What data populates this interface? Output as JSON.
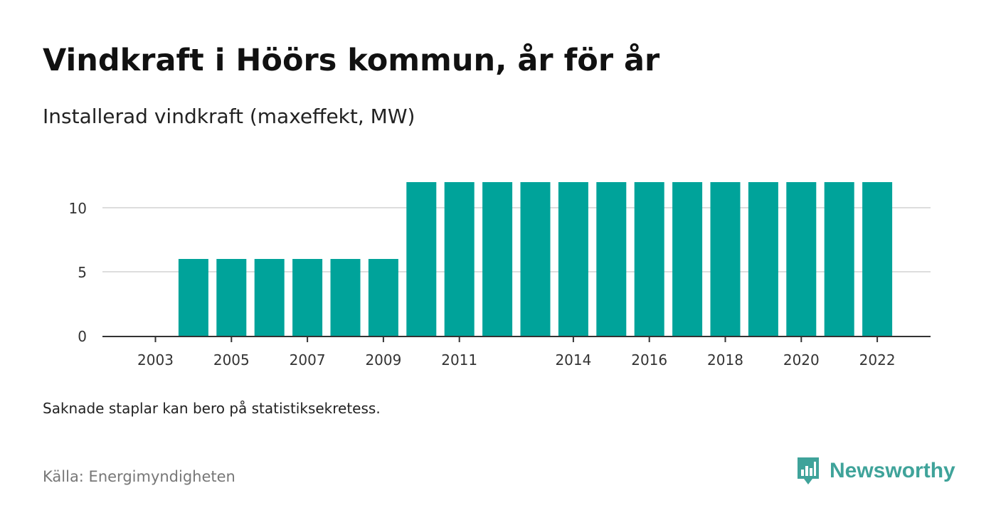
{
  "title": "Vindkraft i Höörs kommun, år för år",
  "subtitle": "Installerad vindkraft (maxeffekt, MW)",
  "note": "Saknade staplar kan bero på statistiksekretess.",
  "source": "Källa: Energimyndigheten",
  "brand": {
    "name": "Newsworthy",
    "logo_icon": "newsworthy-bar-chart-logo-icon",
    "color": "#3fa39a"
  },
  "colors": {
    "bar": "#00a39a",
    "grid": "#dddddd",
    "axis": "#333333"
  },
  "chart_data": {
    "type": "bar",
    "categories": [
      "2003",
      "2004",
      "2005",
      "2006",
      "2007",
      "2008",
      "2009",
      "2010",
      "2011",
      "2012",
      "2013",
      "2014",
      "2015",
      "2016",
      "2017",
      "2018",
      "2019",
      "2020",
      "2021",
      "2022"
    ],
    "values": [
      0,
      6,
      6,
      6,
      6,
      6,
      6,
      12,
      12,
      12,
      12,
      12,
      12,
      12,
      12,
      12,
      12,
      12,
      12,
      12
    ],
    "x_tick_labels": [
      "2003",
      "2005",
      "2007",
      "2009",
      "2011",
      "2014",
      "2016",
      "2018",
      "2020",
      "2022"
    ],
    "y_ticks": [
      0,
      5,
      10
    ],
    "ylim": [
      0,
      12
    ],
    "grid": true,
    "legend": false
  }
}
